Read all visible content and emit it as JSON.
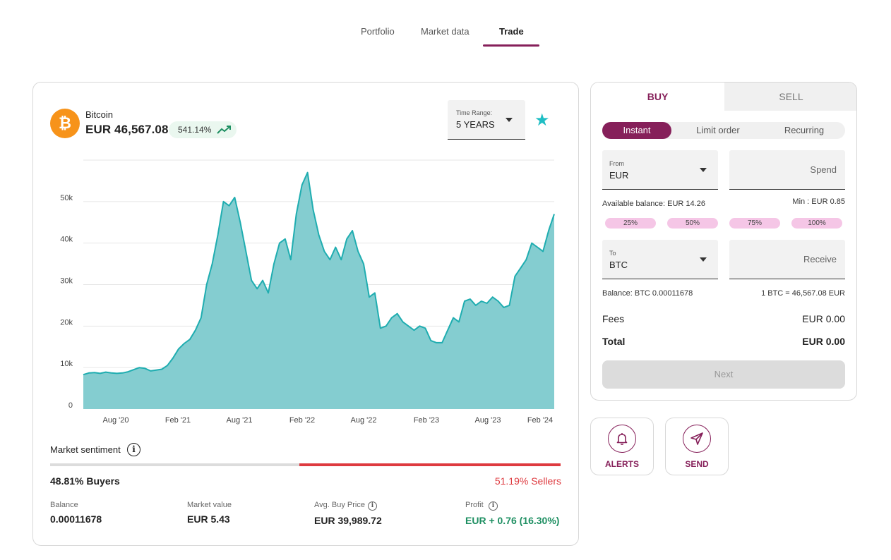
{
  "tabs": [
    {
      "label": "Portfolio",
      "active": false
    },
    {
      "label": "Market data",
      "active": false
    },
    {
      "label": "Trade",
      "active": true
    }
  ],
  "asset": {
    "icon": "bitcoin-logo-icon",
    "logo_glyph": "₿",
    "name": "Bitcoin",
    "price": "EUR 46,567.08",
    "change_pct": "541.14%",
    "change_icon": "trending-up-icon"
  },
  "time_range": {
    "label": "Time Range:",
    "value": "5 YEARS"
  },
  "favorite_icon": "star-icon",
  "colors": {
    "accent": "#86205a",
    "chart_fill": "#84cdd0",
    "chart_line": "#1fadb0",
    "sellers": "#de3a3f",
    "profit": "#1e8f62",
    "star": "#1fbec4",
    "pct_button": "#f5c6e6"
  },
  "chart_data": {
    "type": "area",
    "title": "",
    "xlabel": "",
    "ylabel": "",
    "ylim": [
      0,
      60000
    ],
    "yticks": [
      0,
      10000,
      20000,
      30000,
      40000,
      50000
    ],
    "ytick_labels": [
      "0",
      "10k",
      "20k",
      "30k",
      "40k",
      "50k"
    ],
    "xticks": [
      "Aug '20",
      "Feb '21",
      "Aug '21",
      "Feb '22",
      "Aug '22",
      "Feb '23",
      "Aug '23",
      "Feb '24"
    ],
    "grid": true,
    "series": [
      {
        "values": [
          8300,
          8700,
          8800,
          8600,
          8900,
          8700,
          8600,
          8700,
          9000,
          9500,
          10000,
          9800,
          9200,
          9400,
          9600,
          10500,
          12300,
          14500,
          15800,
          16800,
          19000,
          22000,
          30000,
          35000,
          42000,
          50000,
          49000,
          51000,
          45000,
          38000,
          31000,
          29000,
          31000,
          28000,
          35000,
          40000,
          41000,
          36000,
          47000,
          54000,
          57000,
          48000,
          42000,
          38000,
          36000,
          39000,
          36000,
          41000,
          43000,
          38000,
          35000,
          27000,
          28000,
          19500,
          20000,
          22000,
          23000,
          21000,
          20000,
          19000,
          20000,
          19500,
          16500,
          16000,
          16000,
          19000,
          22000,
          21000,
          26000,
          26500,
          25000,
          26000,
          25500,
          27000,
          26000,
          24500,
          25000,
          32000,
          34000,
          36000,
          40000,
          39000,
          38000,
          43000,
          47000
        ]
      }
    ]
  },
  "sentiment": {
    "title": "Market sentiment",
    "info_icon": "info-icon",
    "buyers_pct": 48.81,
    "sellers_pct": 51.19,
    "buyers_label": "48.81% Buyers",
    "sellers_label": "51.19% Sellers"
  },
  "stats": [
    {
      "label": "Balance",
      "value": "0.00011678",
      "info": false
    },
    {
      "label": "Market value",
      "value": "EUR 5.43",
      "info": false
    },
    {
      "label": "Avg. Buy Price",
      "value": "EUR 39,989.72",
      "info": true
    },
    {
      "label": "Profit",
      "value": "EUR + 0.76 (16.30%)",
      "info": true
    }
  ],
  "trade": {
    "buy_tab": "BUY",
    "sell_tab": "SELL",
    "modes": [
      {
        "label": "Instant",
        "active": true
      },
      {
        "label": "Limit order",
        "active": false
      },
      {
        "label": "Recurring",
        "active": false
      }
    ],
    "from_label": "From",
    "from_value": "EUR",
    "spend_placeholder": "Spend",
    "available_balance": "Available balance: EUR 14.26",
    "min": "Min : EUR 0.85",
    "pct_buttons": [
      "25%",
      "50%",
      "75%",
      "100%"
    ],
    "to_label": "To",
    "to_value": "BTC",
    "receive_placeholder": "Receive",
    "balance": "Balance: BTC 0.00011678",
    "rate": "1 BTC = 46,567.08 EUR",
    "fees_label": "Fees",
    "fees_value": "EUR 0.00",
    "total_label": "Total",
    "total_value": "EUR 0.00",
    "next_label": "Next"
  },
  "actions": [
    {
      "label": "ALERTS",
      "icon": "bell-icon"
    },
    {
      "label": "SEND",
      "icon": "send-icon"
    }
  ]
}
